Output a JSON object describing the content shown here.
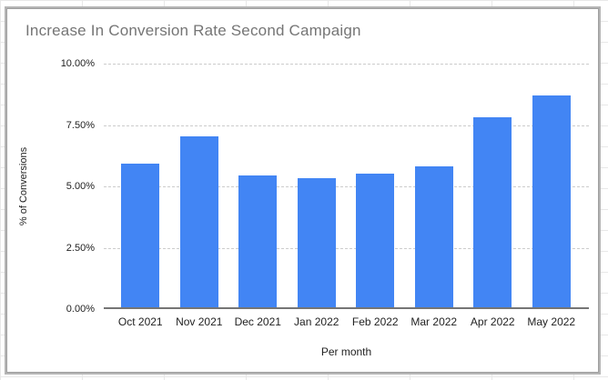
{
  "chart_data": {
    "type": "bar",
    "title": "Increase In Conversion Rate Second Campaign",
    "categories": [
      "Oct 2021",
      "Nov 2021",
      "Dec 2021",
      "Jan 2022",
      "Feb 2022",
      "Mar 2022",
      "Apr 2022",
      "May 2022"
    ],
    "values": [
      5.9,
      7.0,
      5.4,
      5.3,
      5.5,
      5.8,
      7.8,
      8.7
    ],
    "xlabel": "Per month",
    "ylabel": "% of Conversions",
    "ylim": [
      0,
      10
    ],
    "ytick_labels_top_to_bottom": [
      "10.00%",
      "7.50%",
      "5.00%",
      "2.50%",
      "0.00%"
    ],
    "grid": true,
    "legend": false,
    "bar_color": "#4285f4",
    "title_color": "#757575",
    "tick_label_color": "#222222",
    "gridline_color": "#cccccc",
    "axis_line_color": "#757575",
    "card_border_color": "#9e9e9e",
    "background_grid_color": "#e8e8e8"
  }
}
